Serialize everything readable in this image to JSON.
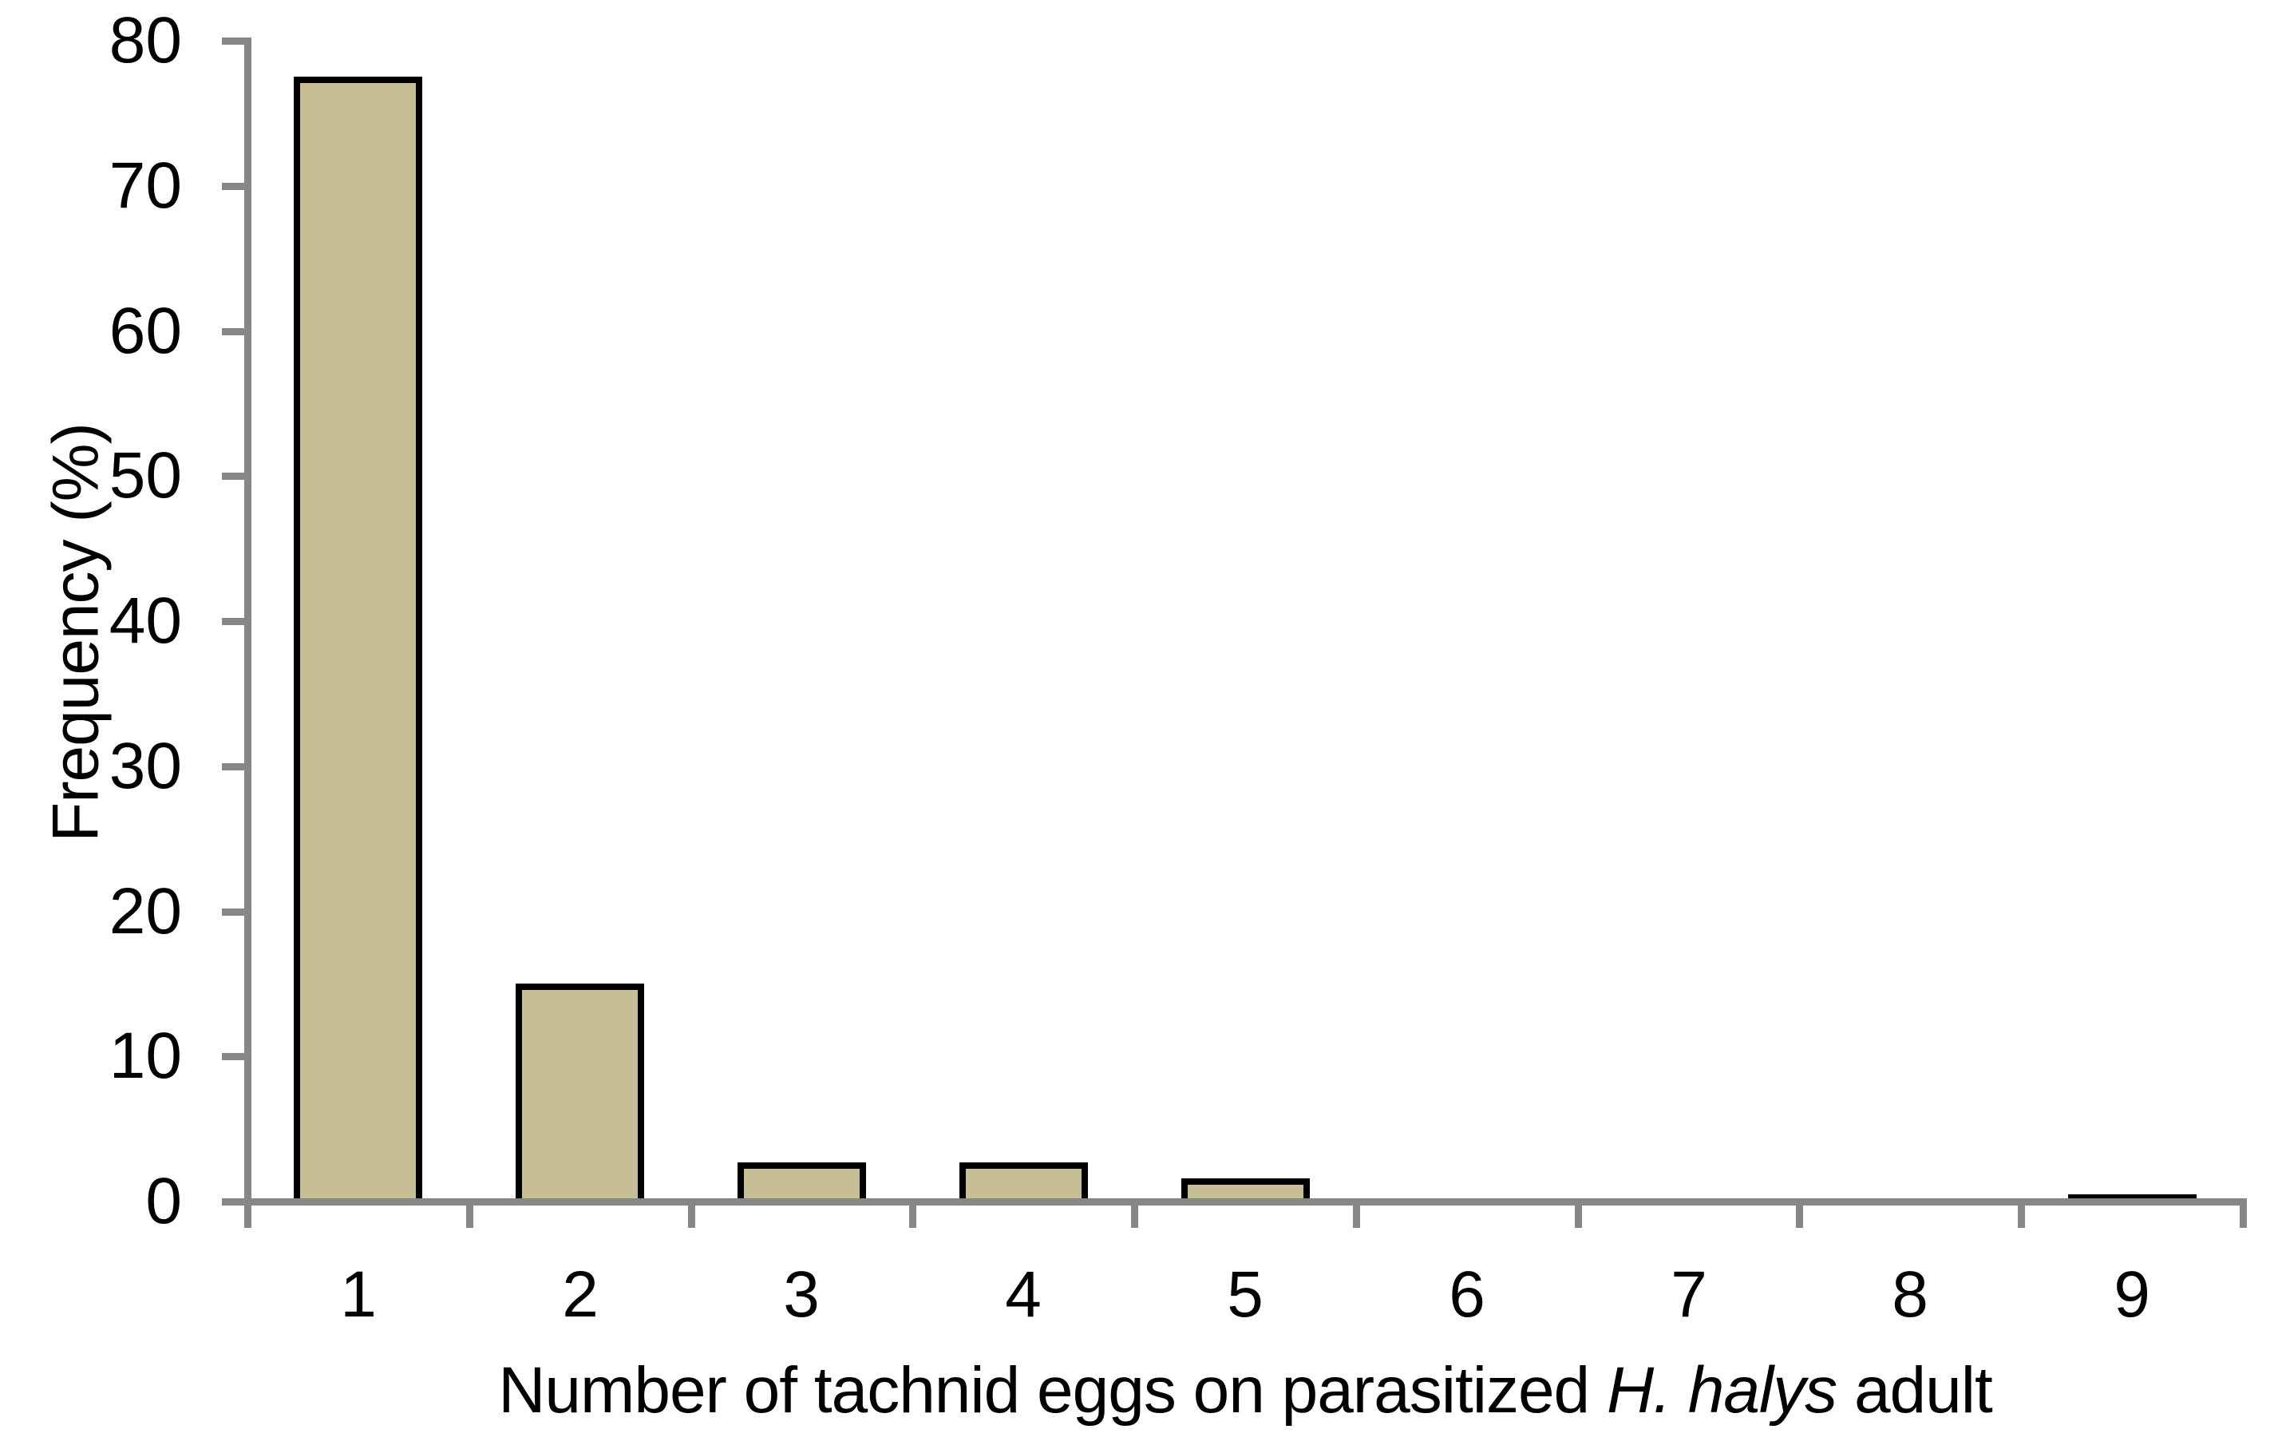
{
  "figure": {
    "xlabel_prefix": "Number of tachnid eggs on parasitized ",
    "xlabel_italic": "H. halys",
    "xlabel_suffix": " adult"
  },
  "chart_data": {
    "type": "bar",
    "categories": [
      "1",
      "2",
      "3",
      "4",
      "5",
      "6",
      "7",
      "8",
      "9"
    ],
    "values": [
      77.5,
      15,
      2.7,
      2.7,
      1.6,
      0,
      0,
      0,
      0.5
    ],
    "title": "",
    "xlabel": "Number of tachnid eggs on parasitized H. halys adult",
    "ylabel": "Frequency (%)",
    "ylim": [
      0,
      80
    ],
    "ytick_step": 10,
    "yticks": [
      0,
      10,
      20,
      30,
      40,
      50,
      60,
      70,
      80
    ],
    "grid": false,
    "legend": null,
    "bar_fill_color": "#C6BE95",
    "bar_border_color": "#000000",
    "axis_color": "#878787",
    "text_color": "#000000"
  }
}
